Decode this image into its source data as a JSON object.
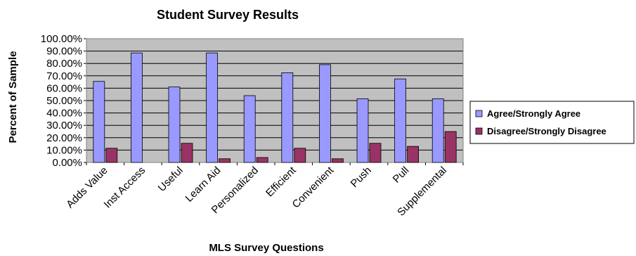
{
  "chart_data": {
    "type": "bar",
    "title": "Student Survey Results",
    "xlabel": "MLS Survey Questions",
    "ylabel": "Percent of Sample",
    "ylim": [
      0,
      100
    ],
    "yticks": [
      "0.00%",
      "10.00%",
      "20.00%",
      "30.00%",
      "40.00%",
      "50.00%",
      "60.00%",
      "70.00%",
      "80.00%",
      "90.00%",
      "100.00%"
    ],
    "grid": true,
    "legend_position": "right",
    "categories": [
      "Adds Value",
      "Inst Access",
      "Useful",
      "Learn Aid",
      "Personalized",
      "Efficient",
      "Convenient",
      "Push",
      "Pull",
      "Supplemental"
    ],
    "series": [
      {
        "name": "Agree/Strongly Agree",
        "color": "#9999ff",
        "values": [
          65.5,
          88.5,
          61,
          88.5,
          54,
          72.5,
          79,
          51.5,
          67.5,
          51.5
        ]
      },
      {
        "name": "Disagree/Strongly Disagree",
        "color": "#993366",
        "values": [
          11.5,
          0,
          15.5,
          3,
          4,
          11.5,
          3,
          15.5,
          13,
          25
        ]
      }
    ],
    "plot_background": "#c0c0c0"
  }
}
